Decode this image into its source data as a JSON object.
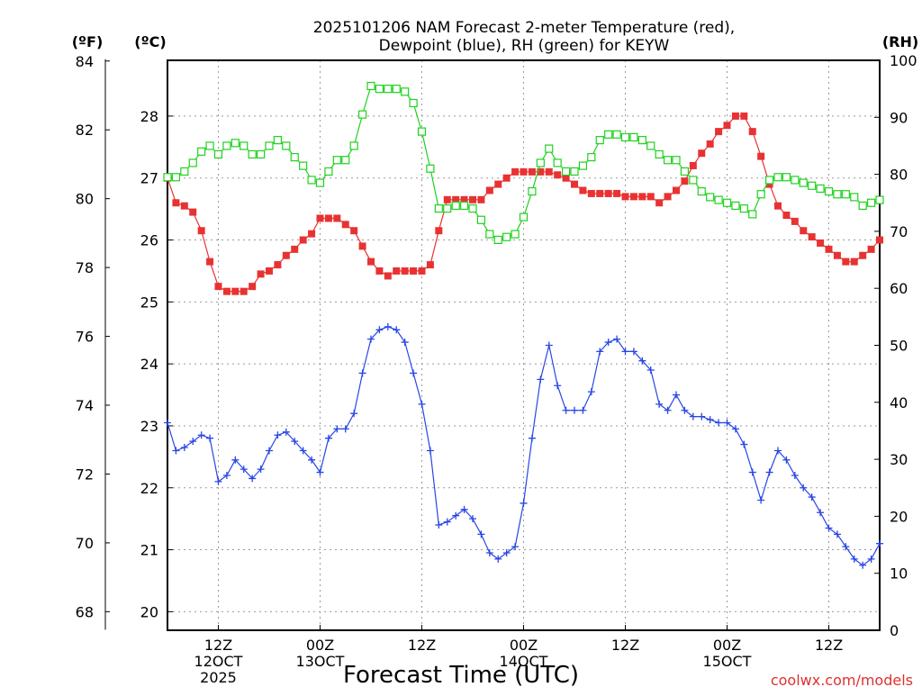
{
  "chart_data": {
    "type": "line",
    "title_line1": "2025101206 NAM Forecast 2-meter Temperature (red),",
    "title_line2": "Dewpoint (blue), RH (green) for KEYW",
    "xlabel": "Forecast Time (UTC)",
    "credit": "coolwx.com/models",
    "unit_labels": {
      "fahrenheit": "(ºF)",
      "celsius": "(ºC)",
      "rh": "(RH)"
    },
    "x_range_hours": [
      0,
      84
    ],
    "x_ticks": [
      {
        "hour": 6,
        "lines": [
          "12Z",
          "12OCT",
          "2025"
        ]
      },
      {
        "hour": 18,
        "lines": [
          "00Z",
          "13OCT"
        ]
      },
      {
        "hour": 30,
        "lines": [
          "12Z"
        ]
      },
      {
        "hour": 42,
        "lines": [
          "00Z",
          "14OCT"
        ]
      },
      {
        "hour": 54,
        "lines": [
          "12Z"
        ]
      },
      {
        "hour": 66,
        "lines": [
          "00Z",
          "15OCT"
        ]
      },
      {
        "hour": 78,
        "lines": [
          "12Z"
        ]
      }
    ],
    "celsius_axis": {
      "range": [
        19.7,
        28.9
      ],
      "ticks": [
        "20",
        "21",
        "22",
        "23",
        "24",
        "25",
        "26",
        "27",
        "28"
      ]
    },
    "fahrenheit_axis": {
      "ticks": [
        "68",
        "70",
        "72",
        "74",
        "76",
        "78",
        "80",
        "82",
        "84"
      ]
    },
    "rh_axis": {
      "range": [
        0,
        100
      ],
      "ticks": [
        "0",
        "10",
        "20",
        "30",
        "40",
        "50",
        "60",
        "70",
        "80",
        "90",
        "100"
      ]
    },
    "grid": true,
    "colors": {
      "temperature": "#e83232",
      "dewpoint": "#2846e6",
      "rh": "#1ed21e"
    },
    "series": [
      {
        "key": "temperature",
        "axis": "celsius",
        "marker": "filled-square",
        "hours_start": 0,
        "hours_step": 1,
        "values": [
          27.0,
          26.6,
          26.55,
          26.45,
          26.15,
          25.65,
          25.25,
          25.17,
          25.17,
          25.17,
          25.25,
          25.45,
          25.5,
          25.6,
          25.75,
          25.85,
          26.0,
          26.1,
          26.35,
          26.35,
          26.35,
          26.25,
          26.15,
          25.9,
          25.65,
          25.5,
          25.42,
          25.5,
          25.5,
          25.5,
          25.5,
          25.6,
          26.15,
          26.65,
          26.65,
          26.65,
          26.65,
          26.65,
          26.8,
          26.9,
          27.0,
          27.1,
          27.1,
          27.1,
          27.1,
          27.1,
          27.05,
          27.0,
          26.9,
          26.8,
          26.75,
          26.75,
          26.75,
          26.75,
          26.7,
          26.7,
          26.7,
          26.7,
          26.6,
          26.7,
          26.8,
          26.95,
          27.2,
          27.4,
          27.55,
          27.75,
          27.85,
          28.0,
          28.0,
          27.75,
          27.35,
          26.9,
          26.55,
          26.4,
          26.3,
          26.15,
          26.05,
          25.95,
          25.85,
          25.75,
          25.65,
          25.65,
          25.75,
          25.85,
          26.0
        ]
      },
      {
        "key": "dewpoint",
        "axis": "celsius",
        "marker": "plus",
        "hours_start": 0,
        "hours_step": 1,
        "values": [
          23.05,
          22.6,
          22.65,
          22.75,
          22.85,
          22.8,
          22.1,
          22.2,
          22.45,
          22.3,
          22.15,
          22.3,
          22.6,
          22.85,
          22.9,
          22.75,
          22.6,
          22.45,
          22.25,
          22.8,
          22.95,
          22.95,
          23.2,
          23.85,
          24.4,
          24.55,
          24.6,
          24.55,
          24.35,
          23.85,
          23.35,
          22.6,
          21.4,
          21.45,
          21.55,
          21.65,
          21.5,
          21.25,
          20.95,
          20.85,
          20.95,
          21.05,
          21.75,
          22.8,
          23.75,
          24.3,
          23.65,
          23.25,
          23.25,
          23.25,
          23.55,
          24.2,
          24.35,
          24.4,
          24.2,
          24.2,
          24.05,
          23.9,
          23.35,
          23.25,
          23.5,
          23.25,
          23.15,
          23.15,
          23.1,
          23.05,
          23.05,
          22.95,
          22.7,
          22.25,
          21.8,
          22.25,
          22.6,
          22.45,
          22.2,
          22.0,
          21.85,
          21.6,
          21.35,
          21.25,
          21.05,
          20.85,
          20.75,
          20.85,
          21.1
        ]
      },
      {
        "key": "rh",
        "axis": "rh",
        "marker": "open-square",
        "hours_start": 0,
        "hours_step": 1,
        "values": [
          79.5,
          79.5,
          80.5,
          82.0,
          84.0,
          85.0,
          83.5,
          85.0,
          85.5,
          85.0,
          83.5,
          83.5,
          85.0,
          86.0,
          85.0,
          83.0,
          81.5,
          79.0,
          78.5,
          80.5,
          82.5,
          82.5,
          85.0,
          90.5,
          95.5,
          95.0,
          95.0,
          95.0,
          94.5,
          92.5,
          87.5,
          81.0,
          74.0,
          74.0,
          74.5,
          74.5,
          74.0,
          72.0,
          69.5,
          68.5,
          69.0,
          69.5,
          72.5,
          77.0,
          82.0,
          84.5,
          82.0,
          80.5,
          80.5,
          81.5,
          83.0,
          86.0,
          87.0,
          87.0,
          86.5,
          86.5,
          86.0,
          85.0,
          83.5,
          82.5,
          82.5,
          80.5,
          79.0,
          77.0,
          76.0,
          75.5,
          75.0,
          74.5,
          74.0,
          73.0,
          76.5,
          79.0,
          79.5,
          79.5,
          79.0,
          78.5,
          78.0,
          77.5,
          77.0,
          76.5,
          76.5,
          76.0,
          74.5,
          75.0,
          75.5
        ]
      }
    ]
  }
}
